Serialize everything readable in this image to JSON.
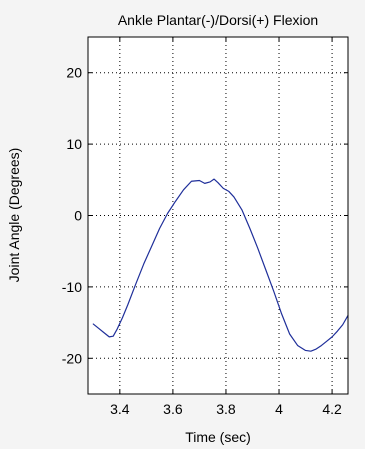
{
  "chart_data": {
    "type": "line",
    "title": "Ankle Plantar(-)/Dorsi(+) Flexion",
    "xlabel": "Time (sec)",
    "ylabel": "Joint Angle (Degrees)",
    "xlim": [
      3.28,
      4.26
    ],
    "ylim": [
      -25,
      25
    ],
    "xticks": [
      3.4,
      3.6,
      3.8,
      4.0,
      4.2
    ],
    "xtick_labels": [
      "3.4",
      "3.6",
      "3.8",
      "4",
      "4.2"
    ],
    "yticks": [
      -20,
      -10,
      0,
      10,
      20
    ],
    "ytick_labels": [
      "-20",
      "-10",
      "0",
      "10",
      "20"
    ],
    "grid": true,
    "grid_style": "dotted",
    "colors": {
      "line": "#1f2f9a",
      "axes_background": "#ffffff",
      "figure_background": "#f4f4f4",
      "axes": "#000000"
    },
    "series": [
      {
        "x": [
          3.3,
          3.32,
          3.34,
          3.36,
          3.375,
          3.39,
          3.41,
          3.43,
          3.46,
          3.49,
          3.52,
          3.55,
          3.58,
          3.61,
          3.64,
          3.67,
          3.7,
          3.72,
          3.74,
          3.755,
          3.77,
          3.79,
          3.81,
          3.83,
          3.86,
          3.89,
          3.92,
          3.95,
          3.98,
          4.01,
          4.04,
          4.07,
          4.1,
          4.12,
          4.14,
          4.16,
          4.18,
          4.2,
          4.22,
          4.24,
          4.26
        ],
        "y": [
          -15.2,
          -15.8,
          -16.4,
          -17.0,
          -16.9,
          -15.9,
          -14.3,
          -12.5,
          -9.6,
          -6.8,
          -4.3,
          -1.8,
          0.3,
          2.0,
          3.6,
          4.8,
          4.9,
          4.5,
          4.7,
          5.1,
          4.6,
          3.8,
          3.4,
          2.6,
          0.8,
          -1.8,
          -4.6,
          -7.6,
          -10.6,
          -13.8,
          -16.6,
          -18.2,
          -18.9,
          -19.0,
          -18.7,
          -18.2,
          -17.6,
          -17.0,
          -16.2,
          -15.3,
          -14.0
        ]
      }
    ]
  }
}
